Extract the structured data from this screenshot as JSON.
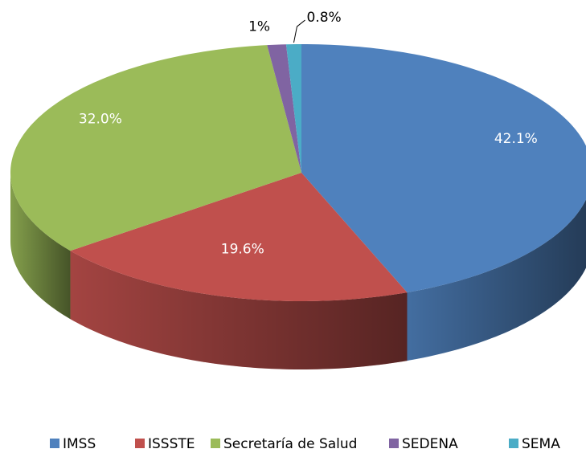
{
  "chart_data": {
    "type": "pie",
    "three_d": true,
    "categories": [
      "IMSS",
      "ISSSTE",
      "Secretaría de Salud",
      "SEDENA",
      "SEMA"
    ],
    "values": [
      42.1,
      19.6,
      32.0,
      1,
      0.8
    ],
    "value_labels": [
      "42.1%",
      "19.6%",
      "32.0%",
      "1%",
      "0.8%"
    ],
    "colors": [
      "#4f81bd",
      "#c0504d",
      "#9bbb59",
      "#8064a2",
      "#4bacc6"
    ],
    "legend": "bottom"
  }
}
